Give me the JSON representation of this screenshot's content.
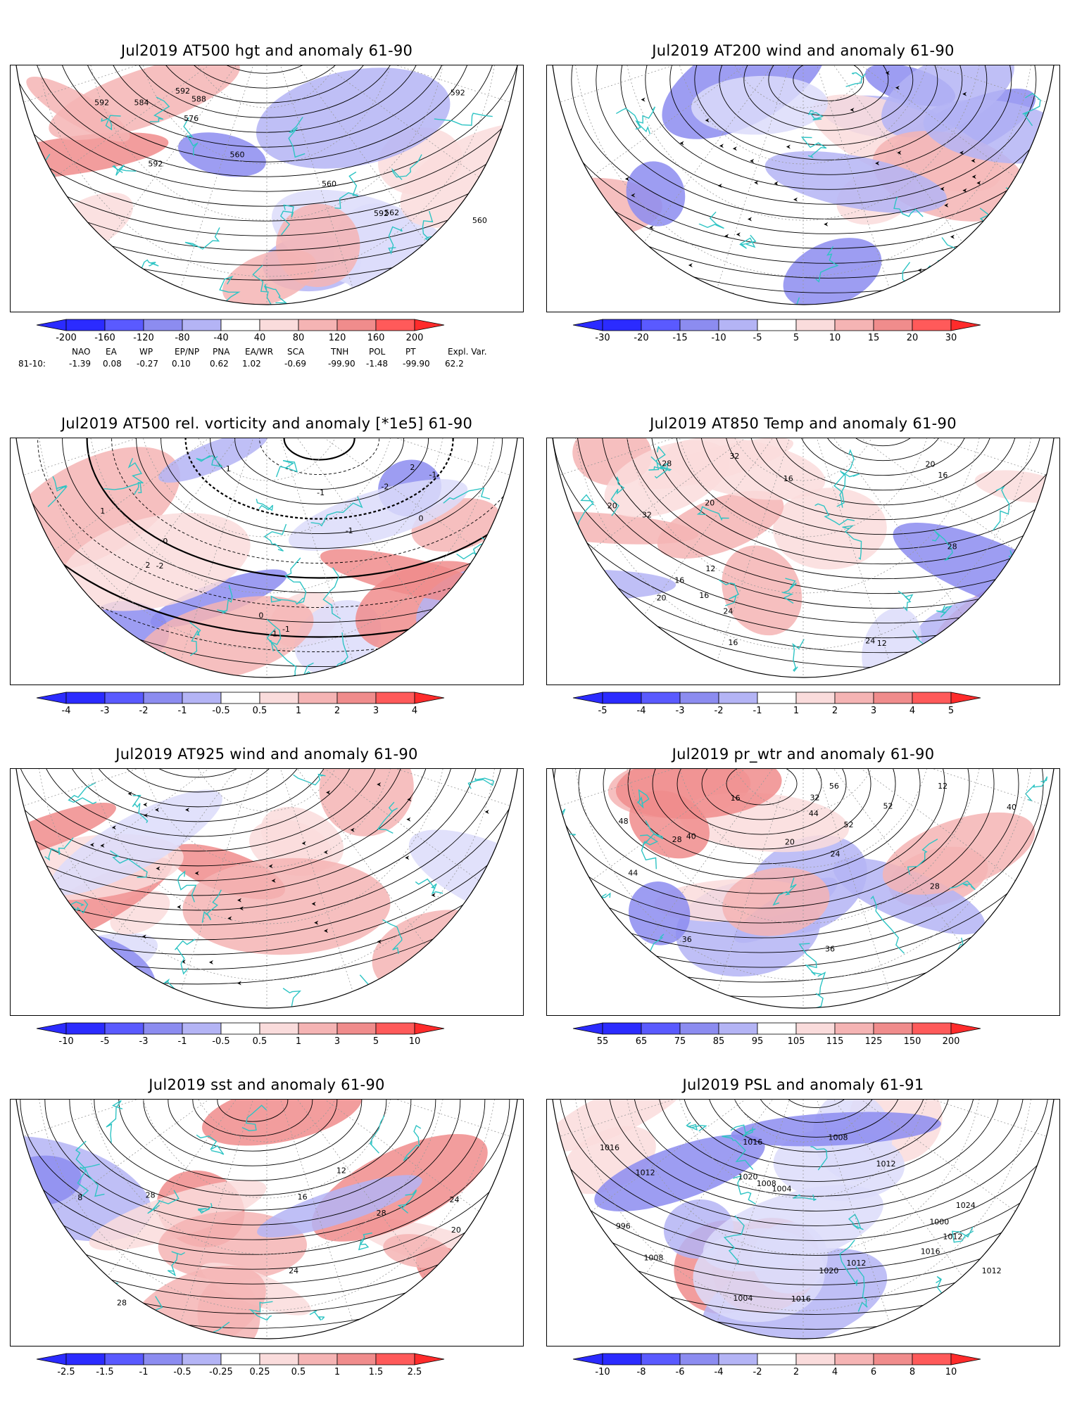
{
  "panels": [
    {
      "title": "Jul2019 AT500 hgt and anomaly 61-90",
      "labels": [
        "-200",
        "-160",
        "-120",
        "-80",
        "-40",
        "40",
        "80",
        "120",
        "160",
        "200"
      ],
      "kind": "hgt"
    },
    {
      "title": "Jul2019 AT200 wind and anomaly 61-90",
      "labels": [
        "-30",
        "-20",
        "-15",
        "-10",
        "-5",
        "5",
        "10",
        "15",
        "20",
        "30"
      ],
      "kind": "wind"
    },
    {
      "title": "Jul2019 AT500 rel. vorticity and anomaly [*1e5] 61-90",
      "labels": [
        "-4",
        "-3",
        "-2",
        "-1",
        "-0.5",
        "0.5",
        "1",
        "2",
        "3",
        "4"
      ],
      "kind": "vort"
    },
    {
      "title": "Jul2019 AT850 Temp and anomaly 61-90",
      "labels": [
        "-5",
        "-4",
        "-3",
        "-2",
        "-1",
        "1",
        "2",
        "3",
        "4",
        "5"
      ],
      "kind": "temp"
    },
    {
      "title": "Jul2019 AT925 wind and anomaly 61-90",
      "labels": [
        "-10",
        "-5",
        "-3",
        "-1",
        "-0.5",
        "0.5",
        "1",
        "3",
        "5",
        "10"
      ],
      "kind": "wind2"
    },
    {
      "title": "Jul2019 pr_wtr and anomaly 61-90",
      "labels": [
        "55",
        "65",
        "75",
        "85",
        "95",
        "105",
        "115",
        "125",
        "150",
        "200"
      ],
      "kind": "prwtr"
    },
    {
      "title": "Jul2019 sst and anomaly 61-90",
      "labels": [
        "-2.5",
        "-1.5",
        "-1",
        "-0.5",
        "-0.25",
        "0.25",
        "0.5",
        "1",
        "1.5",
        "2.5"
      ],
      "kind": "sst"
    },
    {
      "title": "Jul2019 PSL and anomaly 61-91",
      "labels": [
        "-10",
        "-8",
        "-6",
        "-4",
        "-2",
        "2",
        "4",
        "6",
        "8",
        "10"
      ],
      "kind": "psl"
    }
  ],
  "contour_labels": {
    "hgt": [
      "592",
      "562",
      "560",
      "560",
      "592",
      "560",
      "588",
      "576",
      "584",
      "592",
      "592",
      "592"
    ],
    "temp": [
      "20",
      "12",
      "28",
      "32",
      "16",
      "12",
      "20",
      "32",
      "28",
      "24",
      "16",
      "24",
      "20",
      "16",
      "16",
      "20",
      "16"
    ],
    "prwtr": [
      "44",
      "52",
      "40",
      "36",
      "28",
      "32",
      "24",
      "16",
      "12",
      "20",
      "44",
      "40",
      "56",
      "52",
      "48",
      "36",
      "28"
    ],
    "sst": [
      "24",
      "28",
      "8",
      "12",
      "16",
      "20",
      "28",
      "24",
      "28"
    ],
    "psl": [
      "1016",
      "1012",
      "1008",
      "1016",
      "1020",
      "1016",
      "1024",
      "1020",
      "1016",
      "1012",
      "1012",
      "1000",
      "1004",
      "1008",
      "1012",
      "1008",
      "996",
      "1004",
      "1012"
    ],
    "vort": [
      "-1",
      "1",
      "-2",
      "2",
      "0",
      "0",
      "-1",
      "1",
      "2",
      "-2",
      "-1",
      "0",
      "1",
      "-1"
    ]
  },
  "indices": {
    "names": [
      "NAO",
      "EA",
      "WP",
      "EP/NP",
      "PNA",
      "EA/WR",
      "SCA",
      "TNH",
      "POL",
      "PT",
      "Expl. Var."
    ],
    "row_label": "81-10:",
    "values": [
      "-1.39",
      "0.08",
      "-0.27",
      "0.10",
      "0.62",
      "1.02",
      "-0.69",
      "-99.90",
      "-1.48",
      "-99.90",
      "62.2"
    ]
  },
  "colors": {
    "blues": [
      "#2b2bff",
      "#5a5aff",
      "#8c8cf0",
      "#b4b4f5",
      "#dcdcfa"
    ],
    "reds": [
      "#fadcdc",
      "#f5b4b4",
      "#f08c8c",
      "#ff5a5a",
      "#ff2b2b"
    ],
    "coast": "#2ec4c4"
  }
}
